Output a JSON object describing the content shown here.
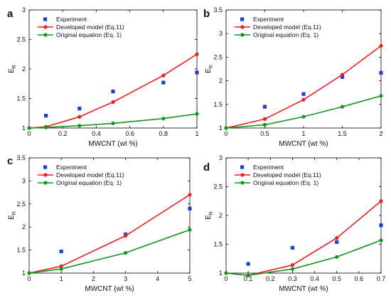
{
  "colors": {
    "experiment": "#1f3fd1",
    "developed": "#e8201f",
    "original": "#14951c"
  },
  "chart_data": [
    {
      "type": "line",
      "panel": "a",
      "xlabel": "MWCNT (wt %)",
      "ylabel": "E",
      "ylabel_sub": "R",
      "xlim": [
        0,
        1
      ],
      "ylim": [
        1,
        3
      ],
      "xticks": [
        "0",
        "0.2",
        "0.4",
        "0.6",
        "0.8",
        "1"
      ],
      "yticks": [
        "1",
        "1.5",
        "2",
        "2.5",
        "3"
      ],
      "legend": {
        "position": "top-left",
        "entries": [
          "Experiment",
          "Developed model (Eq.11)",
          "Original equation (Eq. 1)"
        ]
      },
      "series": [
        {
          "name": "Experiment",
          "style": "markers",
          "x": [
            0.1,
            0.3,
            0.5,
            0.8,
            1.0
          ],
          "y": [
            1.21,
            1.33,
            1.62,
            1.77,
            1.94
          ]
        },
        {
          "name": "Developed model (Eq.11)",
          "style": "line",
          "x": [
            0,
            0.1,
            0.3,
            0.5,
            0.8,
            1.0
          ],
          "y": [
            1.0,
            1.02,
            1.19,
            1.44,
            1.89,
            2.25
          ]
        },
        {
          "name": "Original equation (Eq. 1)",
          "style": "line",
          "x": [
            0,
            0.1,
            0.3,
            0.5,
            0.8,
            1.0
          ],
          "y": [
            1.0,
            1.01,
            1.04,
            1.08,
            1.16,
            1.24
          ]
        }
      ]
    },
    {
      "type": "line",
      "panel": "b",
      "xlabel": "MWCNT (wt %)",
      "ylabel": "E",
      "ylabel_sub": "R",
      "xlim": [
        0,
        2
      ],
      "ylim": [
        1,
        3.5
      ],
      "xticks": [
        "0",
        "0.5",
        "1",
        "1.5",
        "2"
      ],
      "yticks": [
        "1",
        "1.5",
        "2",
        "2.5",
        "3",
        "3.5"
      ],
      "legend": {
        "position": "top-left",
        "entries": [
          "Experiment",
          "Developed model (Eq.11)",
          "Original equation (Eq. 1)"
        ]
      },
      "series": [
        {
          "name": "Experiment",
          "style": "markers",
          "x": [
            0.5,
            1.0,
            1.5,
            2.0
          ],
          "y": [
            1.45,
            1.72,
            2.08,
            2.17
          ]
        },
        {
          "name": "Developed model (Eq.11)",
          "style": "line",
          "x": [
            0,
            0.5,
            1.0,
            1.5,
            2.0
          ],
          "y": [
            1.0,
            1.19,
            1.6,
            2.13,
            2.74
          ]
        },
        {
          "name": "Original equation (Eq. 1)",
          "style": "line",
          "x": [
            0,
            0.5,
            1.0,
            1.5,
            2.0
          ],
          "y": [
            1.0,
            1.07,
            1.24,
            1.45,
            1.68
          ]
        }
      ]
    },
    {
      "type": "line",
      "panel": "c",
      "xlabel": "MWCNT (wt %)",
      "ylabel": "E",
      "ylabel_sub": "R",
      "xlim": [
        0,
        5
      ],
      "ylim": [
        1,
        3.5
      ],
      "xticks": [
        "0",
        "1",
        "2",
        "3",
        "4",
        "5"
      ],
      "yticks": [
        "1",
        "1.5",
        "2",
        "2.5",
        "3",
        "3.5"
      ],
      "legend": {
        "position": "top-left",
        "entries": [
          "Experiment",
          "Developed model (Eq.11)",
          "Original equation (Eq. 1)"
        ]
      },
      "series": [
        {
          "name": "Experiment",
          "style": "markers",
          "x": [
            1,
            3,
            5
          ],
          "y": [
            1.47,
            1.84,
            2.4
          ]
        },
        {
          "name": "Developed model (Eq.11)",
          "style": "line",
          "x": [
            0,
            1,
            3,
            5
          ],
          "y": [
            1.0,
            1.15,
            1.81,
            2.7
          ]
        },
        {
          "name": "Original equation (Eq. 1)",
          "style": "line",
          "x": [
            0,
            1,
            3,
            5
          ],
          "y": [
            1.0,
            1.09,
            1.44,
            1.94
          ]
        }
      ]
    },
    {
      "type": "line",
      "panel": "d",
      "xlabel": "MWCNT (wt %)",
      "ylabel": "E",
      "ylabel_sub": "R",
      "xlim": [
        0,
        0.7
      ],
      "ylim": [
        1,
        3
      ],
      "xticks": [
        "0",
        "0.1",
        "0.2",
        "0.3",
        "0.4",
        "0.5",
        "0.6",
        "0.7"
      ],
      "yticks": [
        "1",
        "1.5",
        "2",
        "2.5",
        "3"
      ],
      "legend": {
        "position": "top-left",
        "entries": [
          "Experiment",
          "Developed model (Eq.11)",
          "Original equation (Eq. 1)"
        ]
      },
      "series": [
        {
          "name": "Experiment",
          "style": "markers",
          "x": [
            0.1,
            0.3,
            0.5,
            0.7
          ],
          "y": [
            1.16,
            1.44,
            1.54,
            1.83
          ]
        },
        {
          "name": "Developed model (Eq.11)",
          "style": "line",
          "x": [
            0,
            0.1,
            0.3,
            0.5,
            0.7
          ],
          "y": [
            1.0,
            0.96,
            1.14,
            1.61,
            2.25
          ]
        },
        {
          "name": "Original equation (Eq. 1)",
          "style": "line",
          "x": [
            0,
            0.1,
            0.3,
            0.5,
            0.7
          ],
          "y": [
            1.0,
            0.96,
            1.07,
            1.28,
            1.57
          ]
        }
      ]
    }
  ]
}
